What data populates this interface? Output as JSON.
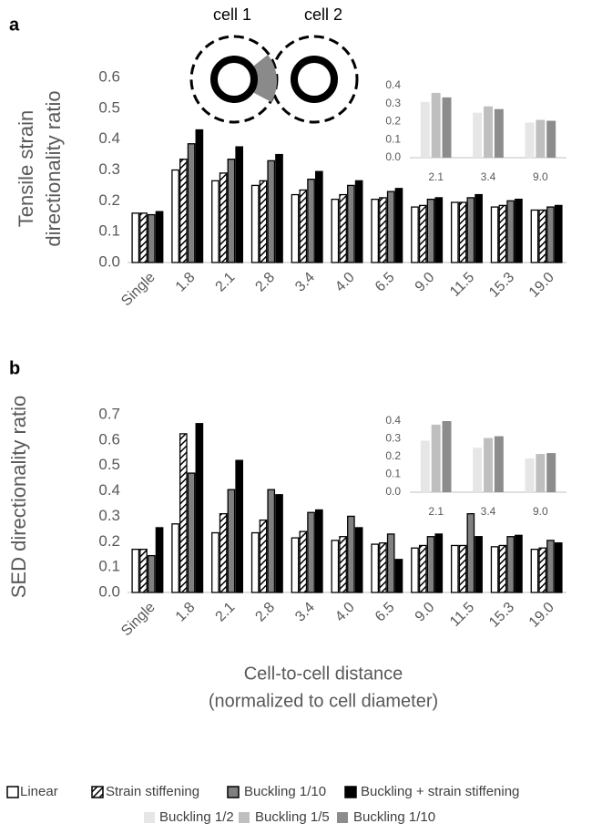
{
  "chart_data": [
    {
      "type": "bar",
      "panel": "a",
      "ylabel": [
        "Tensile strain",
        "directionality ratio"
      ],
      "annotations": [
        "cell 1",
        "cell 2"
      ],
      "categories": [
        "Single",
        "1.8",
        "2.1",
        "2.8",
        "3.4",
        "4.0",
        "6.5",
        "9.0",
        "11.5",
        "15.3",
        "19.0"
      ],
      "series": [
        {
          "name": "Linear",
          "color": "#ffffff",
          "values": [
            0.16,
            0.3,
            0.265,
            0.25,
            0.22,
            0.205,
            0.205,
            0.18,
            0.195,
            0.18,
            0.17
          ]
        },
        {
          "name": "Strain stiffening",
          "color": "#ffffff",
          "pattern": "hatch",
          "values": [
            0.16,
            0.335,
            0.29,
            0.265,
            0.235,
            0.22,
            0.21,
            0.185,
            0.195,
            0.185,
            0.17
          ]
        },
        {
          "name": "Buckling 1/10",
          "color": "#808080",
          "values": [
            0.155,
            0.385,
            0.335,
            0.33,
            0.27,
            0.25,
            0.23,
            0.205,
            0.21,
            0.2,
            0.18
          ]
        },
        {
          "name": "Buckling + strain stiffening",
          "color": "#000000",
          "values": [
            0.165,
            0.43,
            0.375,
            0.35,
            0.295,
            0.265,
            0.24,
            0.21,
            0.22,
            0.205,
            0.185
          ]
        }
      ],
      "edgecolor": "#000000",
      "ylim": [
        0,
        0.6
      ],
      "yticks": [
        {
          "value": 0,
          "label": "0.0"
        },
        0.1,
        0.2,
        0.3,
        0.4,
        0.5,
        0.6
      ]
    },
    {
      "type": "bar",
      "categories": [
        "2.1",
        "3.4",
        "9.0"
      ],
      "series": [
        {
          "name": "Buckling 1/2",
          "color": "#e6e6e6",
          "values": [
            0.31,
            0.25,
            0.195
          ]
        },
        {
          "name": "Buckling 1/5",
          "color": "#bfbfbf",
          "values": [
            0.36,
            0.285,
            0.21
          ]
        },
        {
          "name": "Buckling 1/10",
          "color": "#8c8c8c",
          "values": [
            0.335,
            0.27,
            0.205
          ]
        }
      ],
      "ylim": [
        0,
        0.4
      ],
      "yticks": [
        {
          "value": 0,
          "label": "0.0"
        },
        0.1,
        0.2,
        0.3,
        0.4
      ]
    },
    {
      "type": "bar",
      "panel": "b",
      "ylabel": [
        "SED directionality ratio"
      ],
      "xlabel": [
        "Cell-to-cell distance",
        "(normalized to cell diameter)"
      ],
      "categories": [
        "Single",
        "1.8",
        "2.1",
        "2.8",
        "3.4",
        "4.0",
        "6.5",
        "9.0",
        "11.5",
        "15.3",
        "19.0"
      ],
      "series": [
        {
          "name": "Linear",
          "color": "#ffffff",
          "values": [
            0.17,
            0.27,
            0.235,
            0.235,
            0.215,
            0.205,
            0.19,
            0.175,
            0.185,
            0.18,
            0.17
          ]
        },
        {
          "name": "Strain stiffening",
          "color": "#ffffff",
          "pattern": "hatch",
          "values": [
            0.17,
            0.625,
            0.31,
            0.285,
            0.24,
            0.22,
            0.195,
            0.185,
            0.185,
            0.185,
            0.175
          ]
        },
        {
          "name": "Buckling 1/10",
          "color": "#808080",
          "values": [
            0.145,
            0.47,
            0.405,
            0.405,
            0.315,
            0.3,
            0.23,
            0.22,
            0.31,
            0.22,
            0.205
          ]
        },
        {
          "name": "Buckling + strain stiffening",
          "color": "#000000",
          "values": [
            0.255,
            0.665,
            0.52,
            0.385,
            0.325,
            0.255,
            0.13,
            0.23,
            0.22,
            0.225,
            0.195
          ]
        }
      ],
      "edgecolor": "#000000",
      "ylim": [
        0,
        0.7
      ],
      "yticks": [
        {
          "value": 0,
          "label": "0.0"
        },
        0.1,
        0.2,
        0.3,
        0.4,
        0.5,
        0.6,
        0.7
      ]
    },
    {
      "type": "bar",
      "categories": [
        "2.1",
        "3.4",
        "9.0"
      ],
      "series": [
        {
          "name": "Buckling 1/2",
          "color": "#e6e6e6",
          "values": [
            0.29,
            0.25,
            0.19
          ]
        },
        {
          "name": "Buckling 1/5",
          "color": "#bfbfbf",
          "values": [
            0.38,
            0.305,
            0.215
          ]
        },
        {
          "name": "Buckling 1/10",
          "color": "#8c8c8c",
          "values": [
            0.4,
            0.315,
            0.22
          ]
        }
      ],
      "ylim": [
        0,
        0.4
      ],
      "yticks": [
        {
          "value": 0,
          "label": "0.0"
        },
        0.1,
        0.2,
        0.3,
        0.4
      ]
    }
  ]
}
